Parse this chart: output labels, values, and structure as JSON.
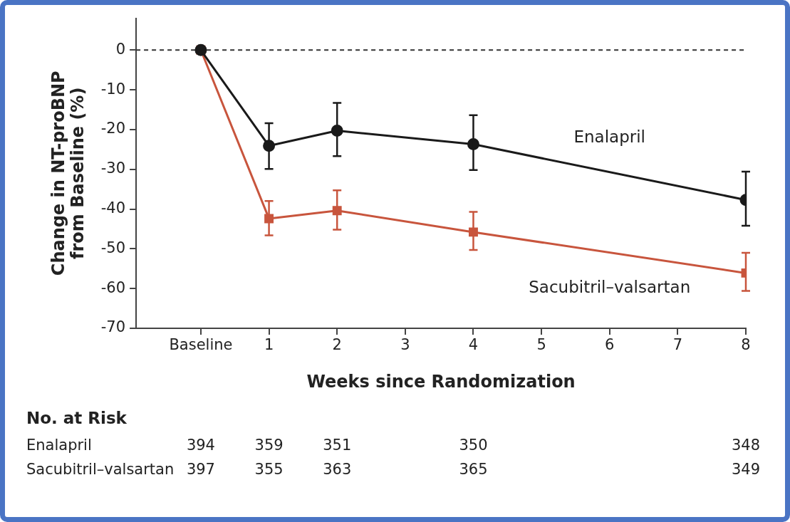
{
  "chart_data": {
    "type": "line",
    "xlabel": "Weeks since Randomization",
    "ylabel": "Change in NT-proBNP from Baseline (%)",
    "x": [
      0,
      1,
      2,
      4,
      8
    ],
    "xlim": [
      -0.95,
      8
    ],
    "xticks": [
      {
        "value": 0,
        "label": "Baseline"
      },
      1,
      2,
      3,
      4,
      5,
      6,
      7,
      8
    ],
    "ylim": [
      -70,
      8
    ],
    "yticks": [
      0,
      -10,
      -20,
      -30,
      -40,
      -50,
      -60,
      -70
    ],
    "grid": false,
    "legend": false,
    "line_style": "solid",
    "series": [
      {
        "name": "Enalapril",
        "color": "#1a1a1a",
        "marker": "circle",
        "values": [
          0,
          -24.1,
          -20.3,
          -23.7,
          -37.7
        ],
        "errors": [
          null,
          [
            -29.9,
            -18.4
          ],
          [
            -26.7,
            -13.3
          ],
          [
            -30.2,
            -16.4
          ],
          [
            -44.2,
            -30.6
          ]
        ]
      },
      {
        "name": "Sacubitril–valsartan",
        "color": "#c8553d",
        "marker": "square",
        "values": [
          0,
          -42.4,
          -40.4,
          -45.8,
          -56.1
        ],
        "errors": [
          null,
          [
            -46.6,
            -38.0
          ],
          [
            -45.2,
            -35.3
          ],
          [
            -50.3,
            -40.7
          ],
          [
            -60.6,
            -51.0
          ]
        ]
      }
    ],
    "ref_lines": [
      {
        "axis": "y",
        "value": 0,
        "color": "#333333",
        "line_style": "dashed"
      }
    ],
    "annotations": [
      "No. at Risk",
      "Enalapril",
      "394",
      "359",
      "351",
      "350",
      "348",
      "Sacubitril–valsartan",
      "397",
      "355",
      "363",
      "365",
      "349"
    ]
  }
}
